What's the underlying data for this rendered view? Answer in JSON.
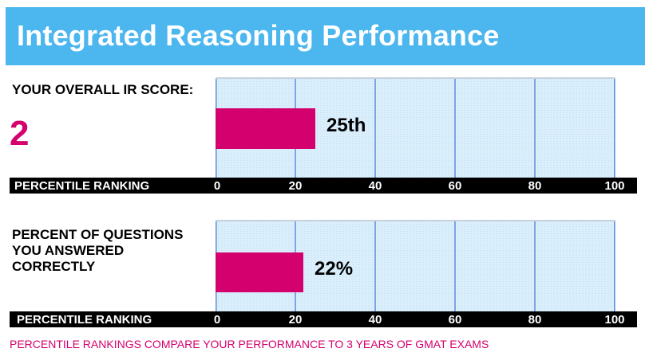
{
  "header": {
    "title": "Integrated Reasoning Performance"
  },
  "score_section": {
    "label": "YOUR OVERALL IR SCORE:",
    "score": "2"
  },
  "questions_section": {
    "label_lines": [
      "PERCENT OF QUESTIONS",
      "YOU ANSWERED",
      "CORRECTLY"
    ]
  },
  "footnote": "PERCENTILE RANKINGS COMPARE YOUR PERFORMANCE TO 3 YEARS OF GMAT EXAMS",
  "colors": {
    "header": "#4cb6ef",
    "accent": "#d4006d",
    "plot_background": "#dbeefb",
    "gridline": "#5b8fd9",
    "axis_bar": "#000000"
  },
  "chart_data": [
    {
      "type": "bar",
      "orientation": "horizontal",
      "categories": [
        "YOUR OVERALL IR SCORE"
      ],
      "values": [
        25
      ],
      "value_label": "25th",
      "xlabel": "PERCENTILE RANKING",
      "xlim": [
        0,
        100
      ],
      "xticks": [
        "0",
        "20",
        "40",
        "60",
        "80",
        "100"
      ],
      "grid": true
    },
    {
      "type": "bar",
      "orientation": "horizontal",
      "categories": [
        "PERCENT OF QUESTIONS YOU ANSWERED CORRECTLY"
      ],
      "values": [
        22
      ],
      "value_label": "22%",
      "xlabel": "PERCENTILE RANKING",
      "xlim": [
        0,
        100
      ],
      "xticks": [
        "0",
        "20",
        "40",
        "60",
        "80",
        "100"
      ],
      "grid": true
    }
  ]
}
